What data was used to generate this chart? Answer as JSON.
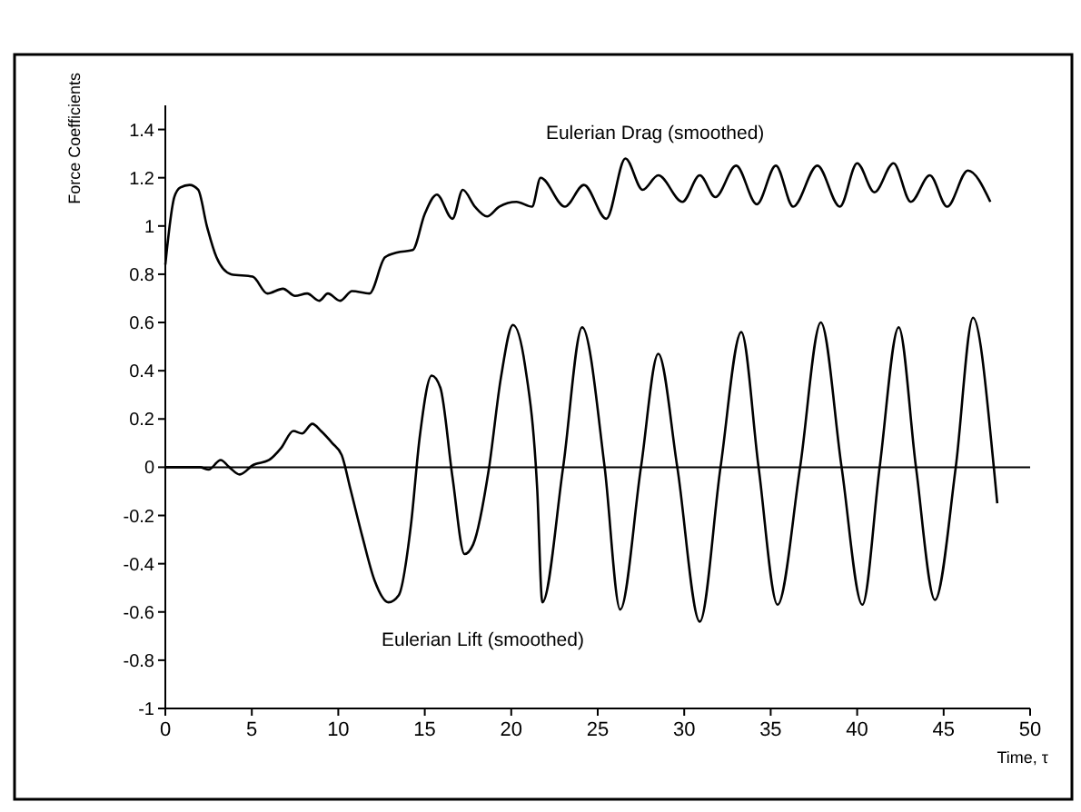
{
  "chart_data": {
    "type": "line",
    "ylabel": "Force Coefficients",
    "xlabel": "Time, τ",
    "xlim": [
      0,
      50
    ],
    "ylim": [
      -1,
      1.5
    ],
    "xticks": [
      0,
      5,
      10,
      15,
      20,
      25,
      30,
      35,
      40,
      45,
      50
    ],
    "yticks": [
      -1,
      -0.8,
      -0.6,
      -0.4,
      -0.2,
      0,
      0.2,
      0.4,
      0.6,
      0.8,
      1,
      1.2,
      1.4
    ],
    "grid": false,
    "marker": "none",
    "line_style": "solid",
    "ref_lines": [
      {
        "axis": "y",
        "value": 0,
        "color": "#000000"
      }
    ],
    "series": [
      {
        "name": "Eulerian Drag (smoothed)",
        "color": "#000000",
        "x": [
          0,
          0.52,
          0.87,
          1.4,
          1.9,
          2.4,
          2.96,
          3.8,
          5.05,
          5.9,
          6.8,
          7.5,
          8.2,
          8.9,
          9.4,
          10.1,
          10.8,
          11.8,
          12.7,
          13.4,
          14.3,
          15.0,
          15.7,
          16.6,
          17.2,
          17.9,
          18.6,
          19.3,
          20.3,
          21.2,
          21.7,
          23.1,
          24.2,
          25.5,
          26.6,
          27.6,
          28.5,
          29.9,
          30.9,
          31.8,
          33.0,
          34.2,
          35.3,
          36.3,
          37.7,
          39.0,
          40.0,
          41.0,
          42.1,
          43.1,
          44.2,
          45.2,
          46.4,
          47.7
        ],
        "values": [
          0.84,
          1.12,
          1.16,
          1.17,
          1.15,
          1.0,
          0.87,
          0.8,
          0.79,
          0.72,
          0.74,
          0.71,
          0.72,
          0.69,
          0.72,
          0.69,
          0.73,
          0.72,
          0.87,
          0.89,
          0.9,
          1.05,
          1.13,
          1.03,
          1.15,
          1.08,
          1.04,
          1.08,
          1.1,
          1.08,
          1.2,
          1.08,
          1.17,
          1.03,
          1.28,
          1.15,
          1.21,
          1.1,
          1.21,
          1.12,
          1.25,
          1.09,
          1.25,
          1.08,
          1.25,
          1.08,
          1.26,
          1.14,
          1.26,
          1.1,
          1.21,
          1.08,
          1.23,
          1.1
        ]
      },
      {
        "name": "Eulerian Lift (smoothed)",
        "color": "#000000",
        "x": [
          0,
          2,
          2.5,
          3.2,
          3.7,
          4.3,
          5.1,
          6.0,
          6.7,
          7.4,
          7.9,
          8.5,
          9.0,
          9.65,
          10.2,
          10.7,
          11.4,
          12.1,
          12.9,
          13.5,
          14.2,
          14.7,
          15.4,
          15.9,
          16.6,
          17.3,
          17.8,
          18.7,
          19.4,
          20.1,
          20.8,
          21.5,
          21.8,
          23.0,
          24.1,
          25.4,
          26.3,
          27.5,
          28.5,
          29.6,
          30.9,
          32.1,
          33.3,
          34.3,
          35.4,
          36.7,
          37.9,
          39.1,
          40.3,
          41.3,
          42.4,
          43.4,
          44.5,
          45.7,
          46.7,
          47.9,
          48.1
        ],
        "values": [
          0,
          0,
          -0.01,
          0.03,
          0,
          -0.03,
          0.01,
          0.03,
          0.08,
          0.15,
          0.14,
          0.18,
          0.15,
          0.1,
          0.05,
          -0.09,
          -0.29,
          -0.47,
          -0.56,
          -0.53,
          -0.24,
          0.12,
          0.38,
          0.33,
          -0.04,
          -0.36,
          -0.32,
          -0.01,
          0.37,
          0.59,
          0.42,
          -0.09,
          -0.56,
          0,
          0.58,
          0,
          -0.59,
          0,
          0.47,
          0,
          -0.64,
          0,
          0.56,
          0,
          -0.57,
          0,
          0.6,
          0,
          -0.57,
          0,
          0.58,
          0,
          -0.55,
          0,
          0.62,
          0,
          -0.15
        ]
      }
    ]
  }
}
